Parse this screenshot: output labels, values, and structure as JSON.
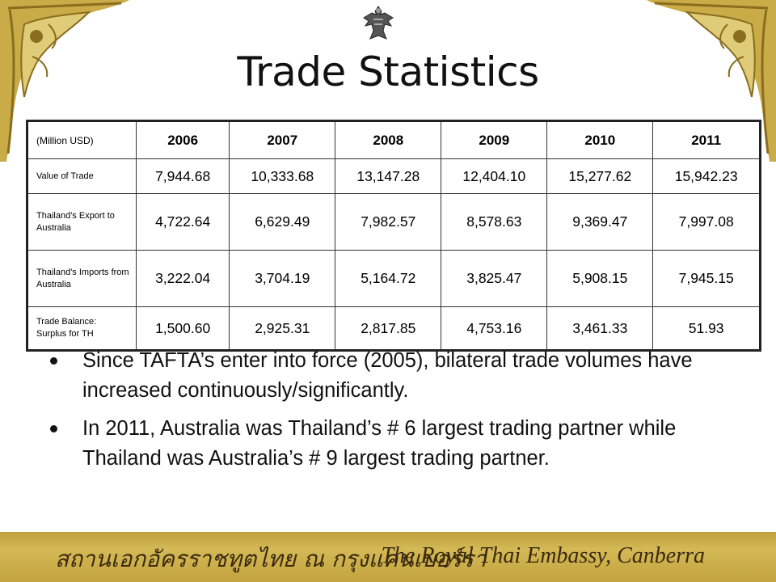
{
  "slide": {
    "title": "Trade Statistics",
    "colors": {
      "gold": "#c9ac48",
      "dark_gold": "#8a6d1e",
      "text": "#111111"
    },
    "icons": {
      "emblem": "garuda-emblem-icon",
      "ornament": "thai-ornament-icon"
    }
  },
  "table": {
    "unit_label": "(Million USD)",
    "years": [
      "2006",
      "2007",
      "2008",
      "2009",
      "2010",
      "2011"
    ],
    "rows": [
      {
        "label": "Value of Trade",
        "values": [
          "7,944.68",
          "10,333.68",
          "13,147.28",
          "12,404.10",
          "15,277.62",
          "15,942.23"
        ]
      },
      {
        "label": "Thailand's Export to Australia",
        "values": [
          "4,722.64",
          "6,629.49",
          "7,982.57",
          "8,578.63",
          "9,369.47",
          "7,997.08"
        ]
      },
      {
        "label": "Thailand's Imports from Australia",
        "values": [
          "3,222.04",
          "3,704.19",
          "5,164.72",
          "3,825.47",
          "5,908.15",
          "7,945.15"
        ]
      },
      {
        "label_line1": "Trade Balance:",
        "label_line2": "Surplus for TH",
        "values": [
          "1,500.60",
          "2,925.31",
          "2,817.85",
          "4,753.16",
          "3,461.33",
          "51.93"
        ]
      }
    ]
  },
  "bullets": [
    "Since TAFTA’s enter into force (2005), bilateral trade volumes have increased continuously/significantly.",
    "In 2011, Australia was Thailand’s # 6 largest trading partner while Thailand was Australia’s # 9 largest trading partner."
  ],
  "footer": {
    "thai_text": "สถานเอกอัครราชทูตไทย ณ กรุงแคนเบอร์รา",
    "english_text": "The Royal Thai Embassy, Canberra"
  }
}
